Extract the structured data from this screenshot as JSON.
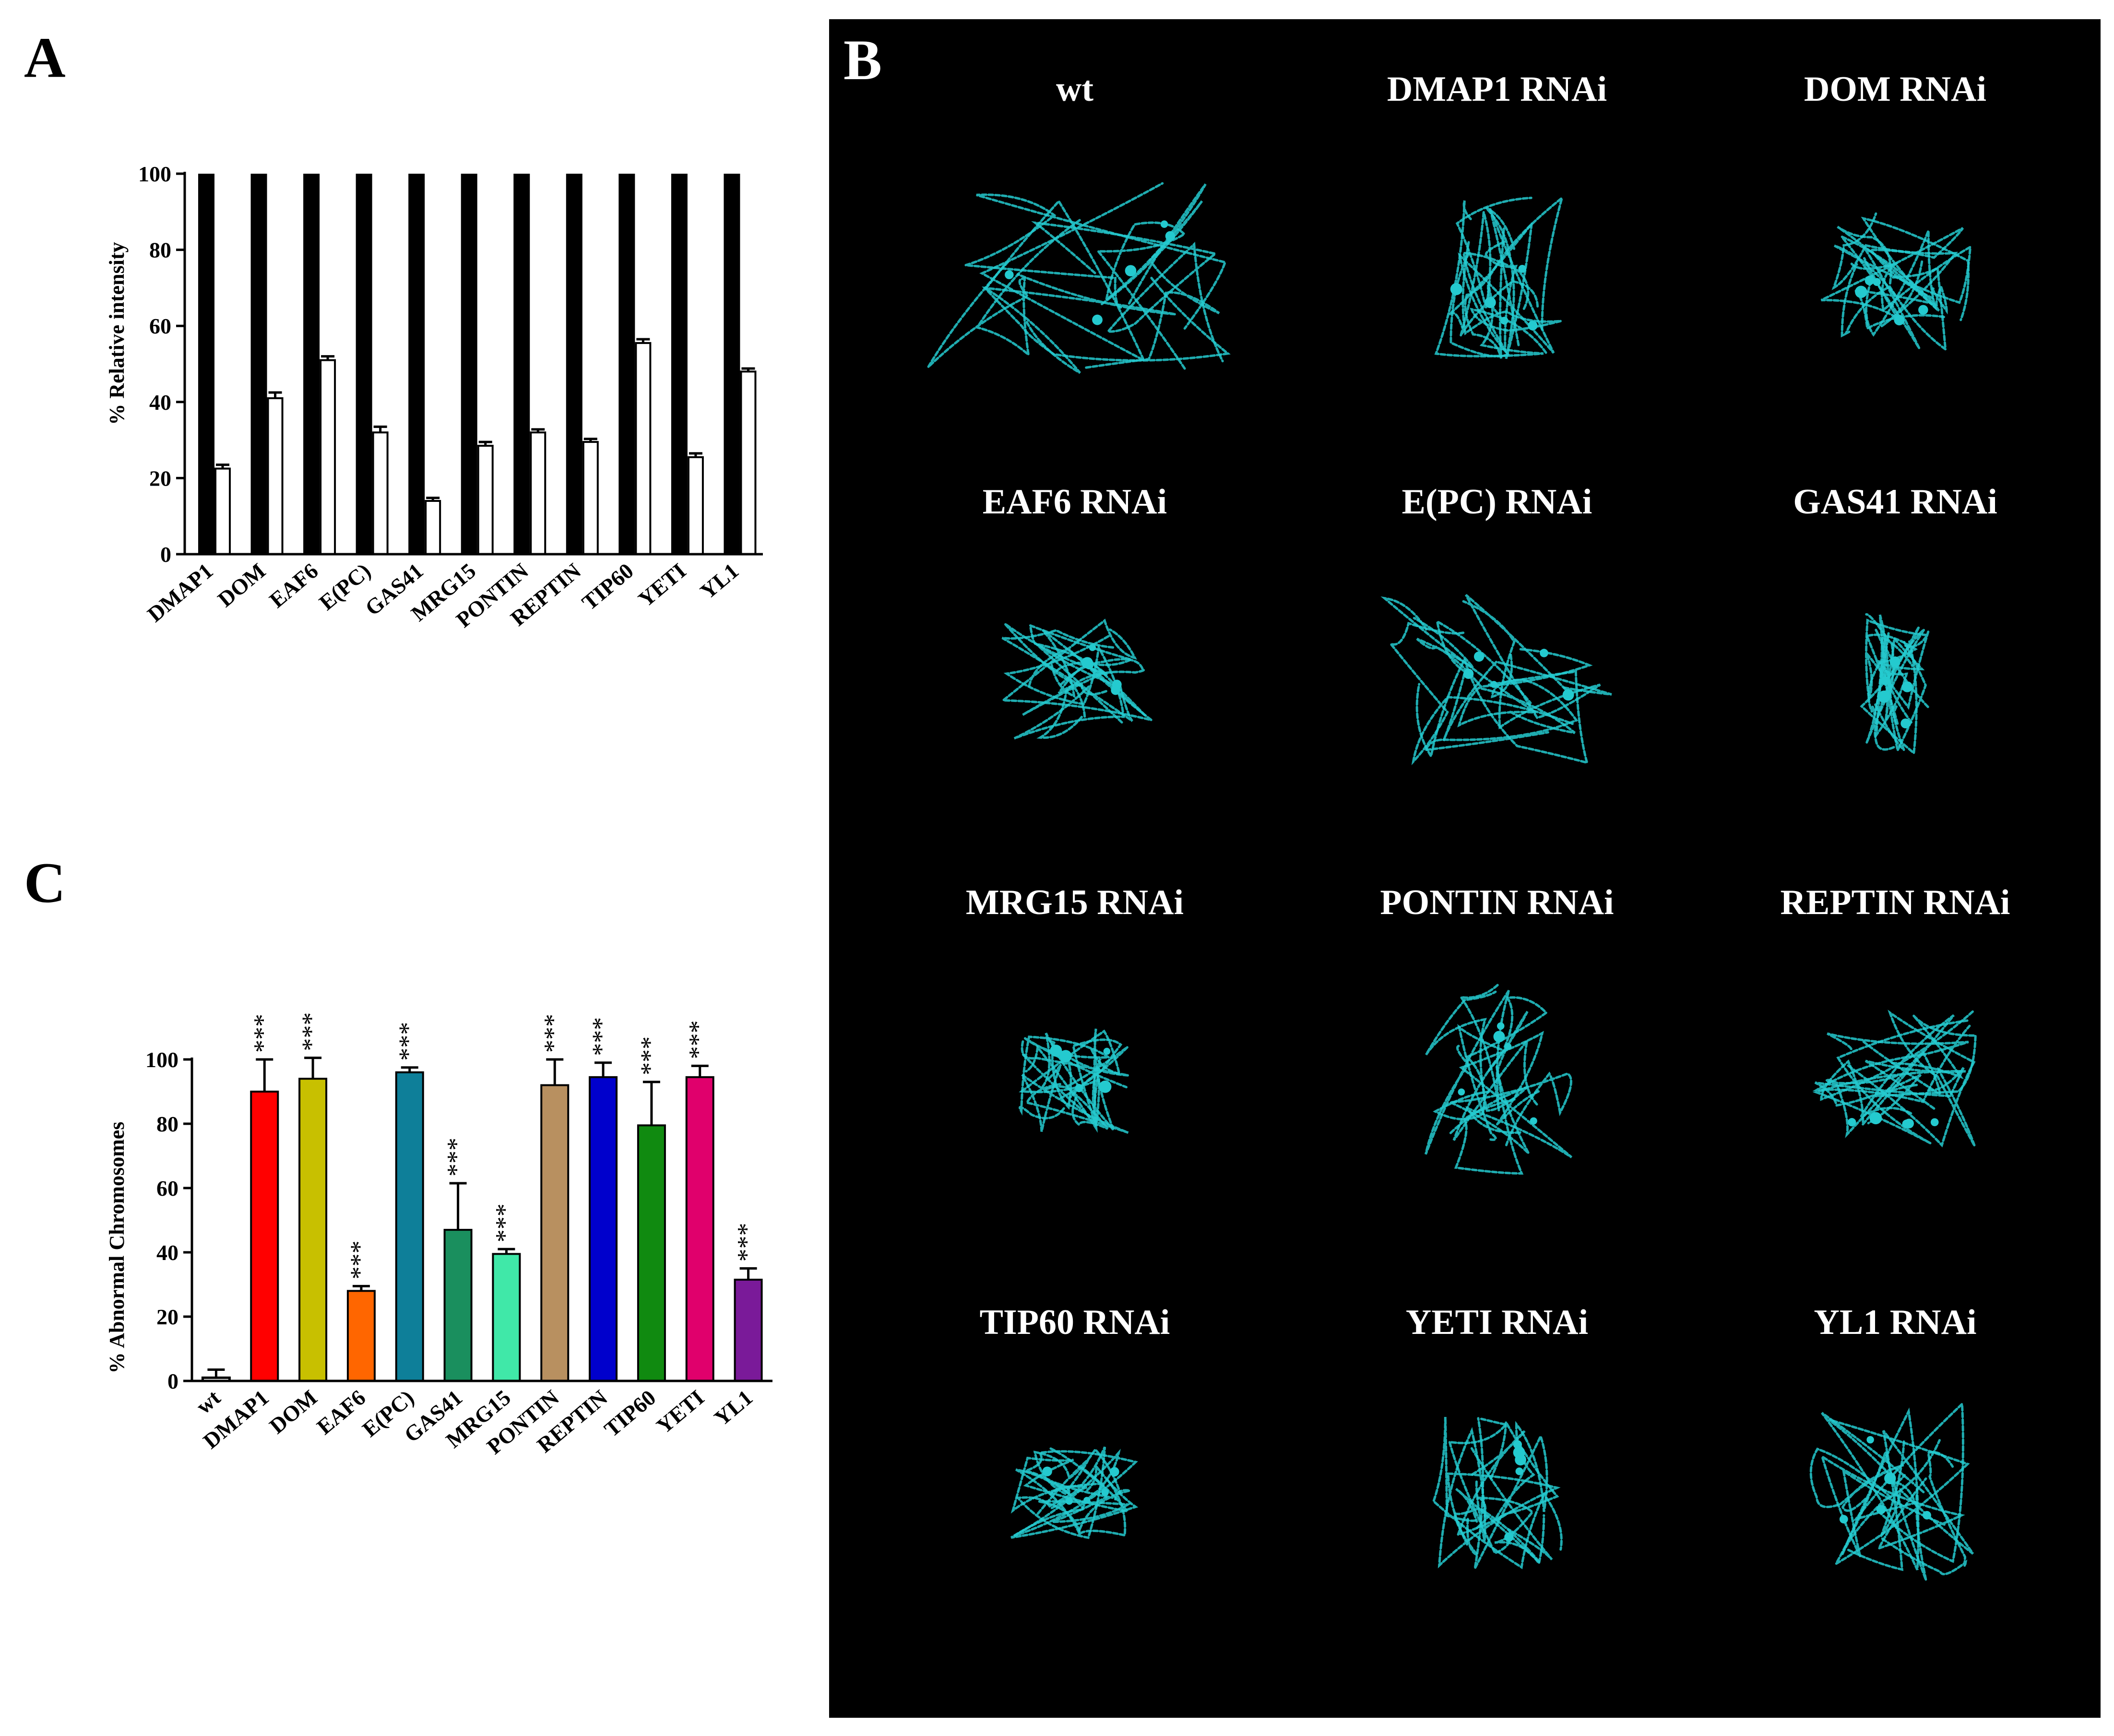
{
  "panels": {
    "A": {
      "letter": "A"
    },
    "B": {
      "letter": "B"
    },
    "C": {
      "letter": "C"
    }
  },
  "chart_data": [
    {
      "panel": "A",
      "type": "bar",
      "title": "",
      "xlabel": "",
      "ylabel": "% Relative intensity",
      "ylim": [
        0,
        100
      ],
      "yticks": [
        0,
        20,
        40,
        60,
        80,
        100
      ],
      "categories": [
        "DMAP1",
        "DOM",
        "EAF6",
        "E(PC)",
        "GAS41",
        "MRG15",
        "PONTIN",
        "REPTIN",
        "TIP60",
        "YETI",
        "YL1"
      ],
      "series": [
        {
          "color": "#000000",
          "values": [
            100,
            100,
            100,
            100,
            100,
            100,
            100,
            100,
            100,
            100,
            100
          ]
        },
        {
          "color": "#ffffff",
          "values": [
            22.5,
            41,
            51,
            32,
            14,
            28.5,
            32,
            29.5,
            55.5,
            25.5,
            48
          ],
          "errors": [
            1.0,
            1.5,
            1.0,
            1.5,
            0.8,
            1.0,
            0.8,
            0.8,
            1.0,
            1.0,
            0.8
          ]
        }
      ],
      "grid": false,
      "legend": "none"
    },
    {
      "panel": "C",
      "type": "bar",
      "title": "",
      "xlabel": "",
      "ylabel": "% Abnormal Chromosomes",
      "ylim": [
        0,
        100
      ],
      "yticks": [
        0,
        20,
        40,
        60,
        80,
        100
      ],
      "categories": [
        "wt",
        "DMAP1",
        "DOM",
        "EAF6",
        "E(PC)",
        "GAS41",
        "MRG15",
        "PONTIN",
        "REPTIN",
        "TIP60",
        "YETI",
        "YL1"
      ],
      "values": [
        1,
        90,
        94,
        28,
        96,
        47,
        39.5,
        92,
        94.5,
        79.5,
        94.5,
        31.5
      ],
      "errors": [
        2.5,
        10,
        6.5,
        1.5,
        1.5,
        14.5,
        1.5,
        8,
        4.5,
        13.5,
        3.5,
        3.5
      ],
      "colors": [
        "#ffffff",
        "#ff0000",
        "#c8c000",
        "#ff6600",
        "#0e7f99",
        "#1a8f5e",
        "#40e8a8",
        "#b89060",
        "#0000cc",
        "#108a10",
        "#e0006c",
        "#7a1a99"
      ],
      "significance": [
        "",
        "***",
        "***",
        "***",
        "***",
        "***",
        "***",
        "***",
        "***",
        "***",
        "***",
        "***"
      ],
      "grid": false,
      "legend": "none"
    }
  ],
  "micrographs": {
    "background": "#000000",
    "text_color": "#ffffff",
    "stain_color": "#29e0e6",
    "labels": [
      "wt",
      "DMAP1 RNAi",
      "DOM RNAi",
      "EAF6 RNAi",
      "E(PC) RNAi",
      "GAS41 RNAi",
      "MRG15 RNAi",
      "PONTIN RNAi",
      "REPTIN RNAi",
      "TIP60 RNAi",
      "YETI RNAi",
      "YL1 RNAi"
    ]
  }
}
